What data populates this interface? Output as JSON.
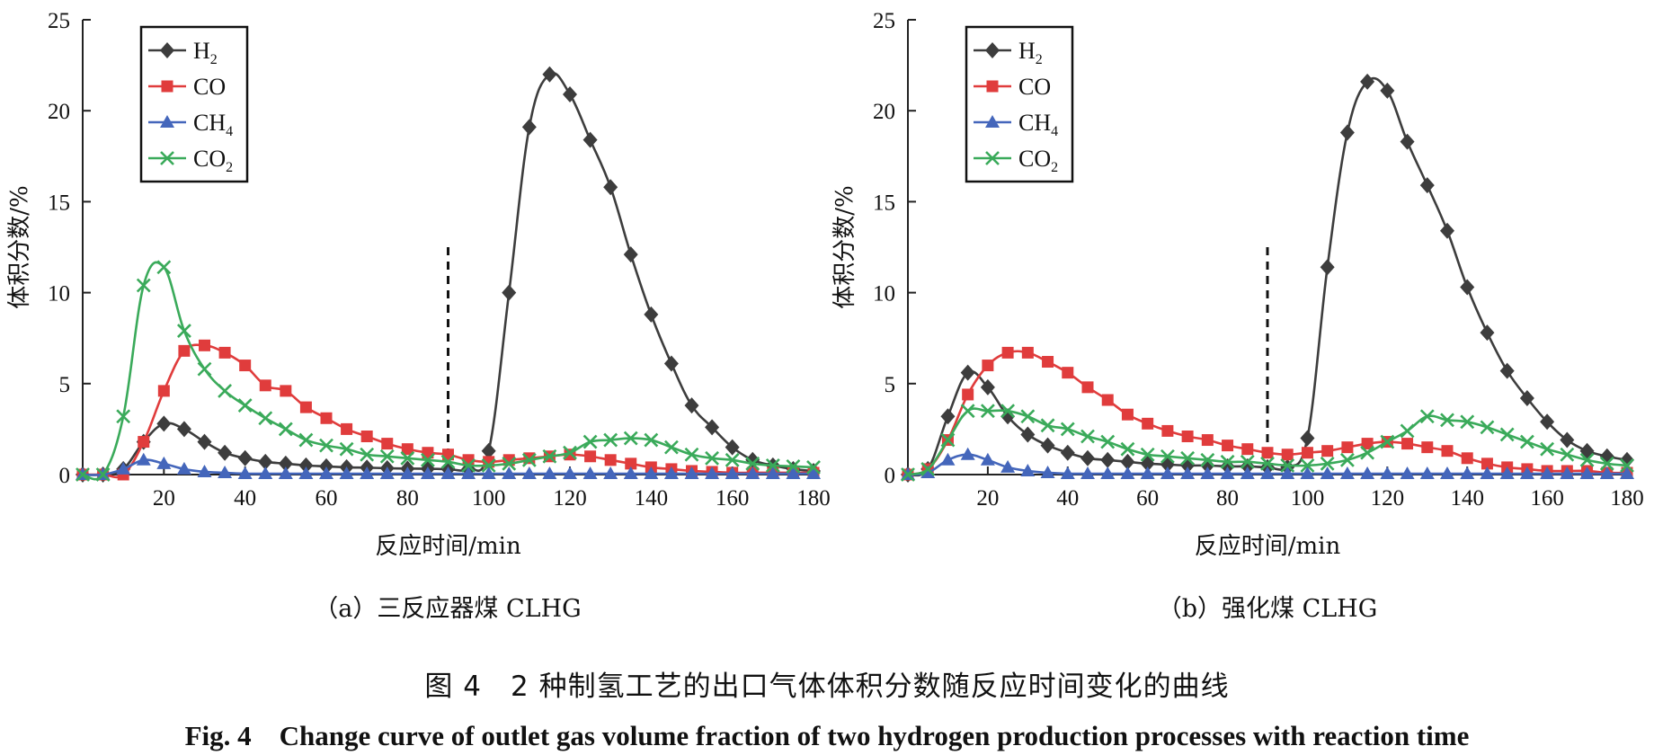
{
  "caption_cn": "图 4　2 种制氢工艺的出口气体体积分数随反应时间变化的曲线",
  "caption_en": "Fig. 4　Change curve of outlet gas volume fraction of two hydrogen production processes with reaction time",
  "colors": {
    "H2": "#3d3d3d",
    "CO": "#e03c3c",
    "CH4": "#4466bb",
    "CO2": "#3aaa5a"
  },
  "chart_data": [
    {
      "type": "line",
      "subcaption": "（a）三反应器煤 CLHG",
      "xlabel": "反应时间/min",
      "ylabel": "体积分数/%",
      "xlim": [
        0,
        180
      ],
      "ylim": [
        0,
        25
      ],
      "xticks": [
        20,
        40,
        60,
        80,
        100,
        120,
        140,
        160,
        180
      ],
      "yticks": [
        0,
        5,
        10,
        15,
        20,
        25
      ],
      "legend_position": "top-left",
      "divider_x": 90,
      "series": [
        {
          "key": "H2",
          "name": "H",
          "sub": "2",
          "marker": "diamond",
          "x": [
            0,
            5,
            10,
            15,
            20,
            25,
            30,
            35,
            40,
            45,
            50,
            55,
            60,
            65,
            70,
            75,
            80,
            85,
            90,
            95,
            100,
            105,
            110,
            115,
            120,
            125,
            130,
            135,
            140,
            145,
            150,
            155,
            160,
            165,
            170,
            175,
            180
          ],
          "y": [
            0,
            0,
            0.3,
            1.8,
            2.8,
            2.5,
            1.8,
            1.2,
            0.9,
            0.7,
            0.6,
            0.5,
            0.45,
            0.4,
            0.38,
            0.35,
            0.33,
            0.32,
            0.3,
            0.3,
            1.3,
            10,
            19.1,
            22,
            20.9,
            18.4,
            15.8,
            12.1,
            8.8,
            6.1,
            3.8,
            2.6,
            1.5,
            0.8,
            0.5,
            0.3,
            0.2
          ]
        },
        {
          "key": "CO",
          "name": "CO",
          "sub": "",
          "marker": "square",
          "x": [
            0,
            5,
            10,
            15,
            20,
            25,
            30,
            35,
            40,
            45,
            50,
            55,
            60,
            65,
            70,
            75,
            80,
            85,
            90,
            95,
            100,
            105,
            110,
            115,
            120,
            125,
            130,
            135,
            140,
            145,
            150,
            155,
            160,
            165,
            170,
            175,
            180
          ],
          "y": [
            0,
            0,
            0,
            1.8,
            4.6,
            6.8,
            7.1,
            6.7,
            6,
            4.9,
            4.6,
            3.7,
            3.1,
            2.5,
            2.1,
            1.7,
            1.4,
            1.2,
            1.1,
            0.8,
            0.7,
            0.8,
            0.9,
            1,
            1.1,
            1,
            0.8,
            0.6,
            0.4,
            0.3,
            0.2,
            0.15,
            0.1,
            0.1,
            0.1,
            0.1,
            0.1
          ]
        },
        {
          "key": "CH4",
          "name": "CH",
          "sub": "4",
          "marker": "triangle",
          "x": [
            0,
            5,
            10,
            15,
            20,
            25,
            30,
            35,
            40,
            45,
            50,
            55,
            60,
            65,
            70,
            75,
            80,
            85,
            90,
            95,
            100,
            105,
            110,
            115,
            120,
            125,
            130,
            135,
            140,
            145,
            150,
            155,
            160,
            165,
            170,
            175,
            180
          ],
          "y": [
            0,
            0,
            0.3,
            0.8,
            0.6,
            0.3,
            0.15,
            0.1,
            0.05,
            0.05,
            0.05,
            0.05,
            0.05,
            0.05,
            0.05,
            0.05,
            0.05,
            0.05,
            0.05,
            0.05,
            0.05,
            0.05,
            0.05,
            0.05,
            0.05,
            0.05,
            0.05,
            0.05,
            0.05,
            0.05,
            0.05,
            0.05,
            0.05,
            0.05,
            0.05,
            0.05,
            0.05
          ]
        },
        {
          "key": "CO2",
          "name": "CO",
          "sub": "2",
          "marker": "x",
          "x": [
            0,
            5,
            10,
            15,
            20,
            25,
            30,
            35,
            40,
            45,
            50,
            55,
            60,
            65,
            70,
            75,
            80,
            85,
            90,
            95,
            100,
            105,
            110,
            115,
            120,
            125,
            130,
            135,
            140,
            145,
            150,
            155,
            160,
            165,
            170,
            175,
            180
          ],
          "y": [
            0,
            0,
            3.2,
            10.4,
            11.4,
            7.9,
            5.8,
            4.6,
            3.8,
            3.1,
            2.5,
            1.9,
            1.6,
            1.4,
            1.1,
            1,
            0.9,
            0.8,
            0.7,
            0.5,
            0.5,
            0.6,
            0.8,
            1,
            1.2,
            1.8,
            1.9,
            2,
            1.9,
            1.5,
            1.1,
            0.9,
            0.8,
            0.6,
            0.5,
            0.45,
            0.4
          ]
        }
      ]
    },
    {
      "type": "line",
      "subcaption": "（b）强化煤 CLHG",
      "xlabel": "反应时间/min",
      "ylabel": "体积分数/%",
      "xlim": [
        0,
        180
      ],
      "ylim": [
        0,
        25
      ],
      "xticks": [
        20,
        40,
        60,
        80,
        100,
        120,
        140,
        160,
        180
      ],
      "yticks": [
        0,
        5,
        10,
        15,
        20,
        25
      ],
      "legend_position": "top-left",
      "divider_x": 90,
      "series": [
        {
          "key": "H2",
          "name": "H",
          "sub": "2",
          "marker": "diamond",
          "x": [
            0,
            5,
            10,
            15,
            20,
            25,
            30,
            35,
            40,
            45,
            50,
            55,
            60,
            65,
            70,
            75,
            80,
            85,
            90,
            95,
            100,
            105,
            110,
            115,
            120,
            125,
            130,
            135,
            140,
            145,
            150,
            155,
            160,
            165,
            170,
            175,
            180
          ],
          "y": [
            0,
            0.3,
            3.2,
            5.6,
            4.8,
            3.2,
            2.2,
            1.6,
            1.2,
            0.9,
            0.8,
            0.7,
            0.6,
            0.55,
            0.5,
            0.5,
            0.45,
            0.45,
            0.4,
            0.4,
            2,
            11.4,
            18.8,
            21.6,
            21.1,
            18.3,
            15.9,
            13.4,
            10.3,
            7.8,
            5.7,
            4.2,
            2.9,
            1.9,
            1.3,
            1,
            0.8
          ]
        },
        {
          "key": "CO",
          "name": "CO",
          "sub": "",
          "marker": "square",
          "x": [
            0,
            5,
            10,
            15,
            20,
            25,
            30,
            35,
            40,
            45,
            50,
            55,
            60,
            65,
            70,
            75,
            80,
            85,
            90,
            95,
            100,
            105,
            110,
            115,
            120,
            125,
            130,
            135,
            140,
            145,
            150,
            155,
            160,
            165,
            170,
            175,
            180
          ],
          "y": [
            0,
            0.3,
            1.9,
            4.4,
            6,
            6.7,
            6.7,
            6.2,
            5.6,
            4.8,
            4.1,
            3.3,
            2.8,
            2.4,
            2.1,
            1.9,
            1.6,
            1.4,
            1.2,
            1.1,
            1.2,
            1.3,
            1.5,
            1.7,
            1.8,
            1.7,
            1.5,
            1.3,
            0.9,
            0.6,
            0.4,
            0.3,
            0.2,
            0.2,
            0.2,
            0.1,
            0.1
          ]
        },
        {
          "key": "CH4",
          "name": "CH",
          "sub": "4",
          "marker": "triangle",
          "x": [
            0,
            5,
            10,
            15,
            20,
            25,
            30,
            35,
            40,
            45,
            50,
            55,
            60,
            65,
            70,
            75,
            80,
            85,
            90,
            95,
            100,
            105,
            110,
            115,
            120,
            125,
            130,
            135,
            140,
            145,
            150,
            155,
            160,
            165,
            170,
            175,
            180
          ],
          "y": [
            0,
            0.1,
            0.8,
            1.1,
            0.8,
            0.4,
            0.2,
            0.1,
            0.05,
            0.05,
            0.05,
            0.05,
            0.05,
            0.05,
            0.05,
            0.05,
            0.05,
            0.05,
            0.05,
            0.05,
            0.05,
            0.05,
            0.05,
            0.05,
            0.05,
            0.05,
            0.05,
            0.05,
            0.05,
            0.05,
            0.05,
            0.05,
            0.05,
            0.05,
            0.05,
            0.05,
            0.05
          ]
        },
        {
          "key": "CO2",
          "name": "CO",
          "sub": "2",
          "marker": "x",
          "x": [
            0,
            5,
            10,
            15,
            20,
            25,
            30,
            35,
            40,
            45,
            50,
            55,
            60,
            65,
            70,
            75,
            80,
            85,
            90,
            95,
            100,
            105,
            110,
            115,
            120,
            125,
            130,
            135,
            140,
            145,
            150,
            155,
            160,
            165,
            170,
            175,
            180
          ],
          "y": [
            0,
            0.3,
            1.9,
            3.5,
            3.5,
            3.5,
            3.2,
            2.7,
            2.5,
            2.1,
            1.8,
            1.4,
            1.1,
            1,
            0.9,
            0.8,
            0.7,
            0.7,
            0.6,
            0.5,
            0.5,
            0.6,
            0.8,
            1.2,
            1.8,
            2.4,
            3.2,
            3,
            2.9,
            2.6,
            2.2,
            1.8,
            1.4,
            1.1,
            0.8,
            0.6,
            0.5
          ]
        }
      ]
    }
  ]
}
